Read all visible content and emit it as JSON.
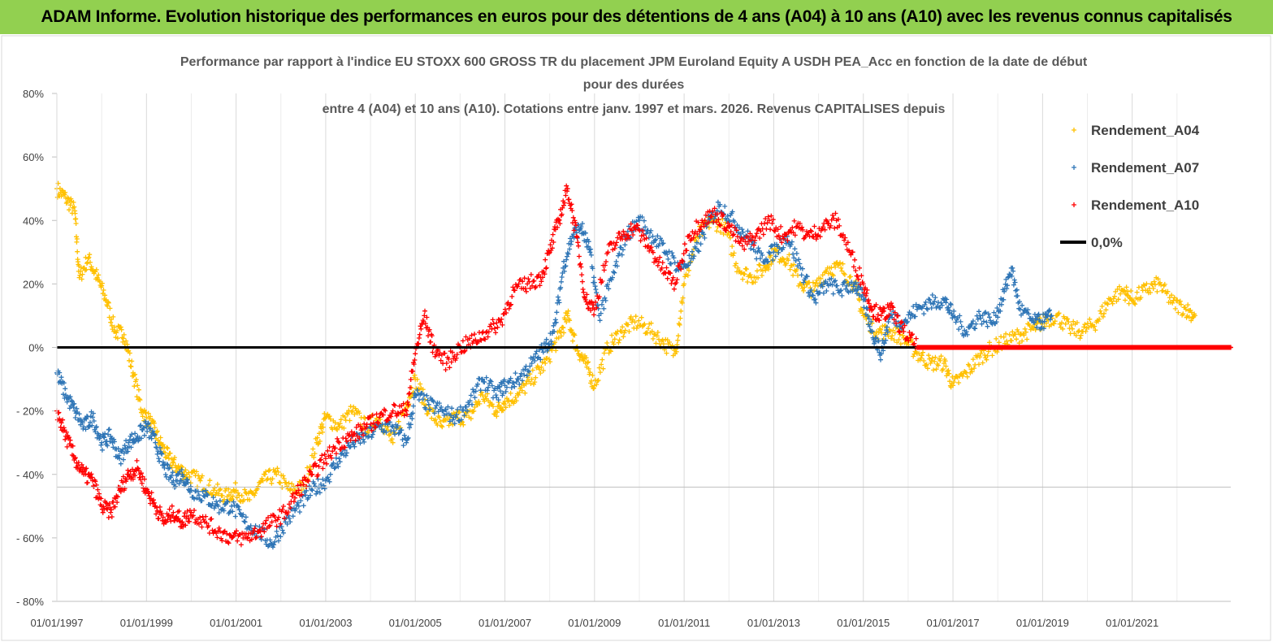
{
  "banner": {
    "title": "ADAM Informe. Evolution historique des performances en euros pour des détentions de 4 ans (A04) à 10 ans (A10) avec les revenus connus capitalisés"
  },
  "colors": {
    "banner": "#92d050",
    "a04": "#ffc000",
    "a07": "#2e75b6",
    "a10": "#ff0000",
    "zero_line": "#000000"
  },
  "chart_data": {
    "type": "scatter",
    "title": [
      "Performance par rapport à l'indice EU STOXX 600 GROSS TR  du placement JPM Euroland Equity A USDH PEA_Acc en fonction de la date de début",
      "pour des durées",
      "entre 4 (A04) et 10 ans (A10). Cotations entre janv. 1997 et mars. 2026. Revenus CAPITALISES depuis"
    ],
    "xlabel": "",
    "ylabel": "",
    "ylim": [
      -0.8,
      0.8
    ],
    "xlim": [
      1997.0,
      2023.2
    ],
    "y_ticks": [
      "80%",
      "60%",
      "40%",
      "20%",
      "0%",
      "- 20%",
      "- 40%",
      "- 60%",
      "- 80%"
    ],
    "x_ticks": [
      "01/01/1997",
      "01/01/1999",
      "01/01/2001",
      "01/01/2003",
      "01/01/2005",
      "01/01/2007",
      "01/01/2009",
      "01/01/2011",
      "01/01/2013",
      "01/01/2015",
      "01/01/2017",
      "01/01/2019",
      "01/01/2021"
    ],
    "grid": "vertical",
    "legend_position": "right",
    "series": [
      {
        "name": "Rendement_A04",
        "marker": "+",
        "x": [
          1997.0,
          1997.2,
          1997.4,
          1997.5,
          1997.7,
          1997.9,
          1998.1,
          1998.3,
          1998.5,
          1998.7,
          1998.9,
          1999.1,
          1999.3,
          1999.5,
          1999.7,
          1999.9,
          2000.2,
          2000.5,
          2000.8,
          2001.0,
          2001.3,
          2001.6,
          2001.9,
          2002.2,
          2002.5,
          2002.8,
          2003.0,
          2003.3,
          2003.6,
          2003.9,
          2004.2,
          2004.5,
          2004.8,
          2005.0,
          2005.3,
          2005.6,
          2005.9,
          2006.2,
          2006.5,
          2006.8,
          2007.0,
          2007.3,
          2007.6,
          2007.9,
          2008.2,
          2008.4,
          2008.6,
          2008.8,
          2009.0,
          2009.3,
          2009.6,
          2009.9,
          2010.2,
          2010.5,
          2010.8,
          2011.0,
          2011.3,
          2011.6,
          2011.9,
          2012.2,
          2012.5,
          2012.8,
          2013.0,
          2013.3,
          2013.6,
          2013.9,
          2014.2,
          2014.5,
          2014.8,
          2015.0,
          2015.3,
          2015.6,
          2015.9,
          2016.2,
          2016.5,
          2016.8,
          2017.0,
          2017.3,
          2017.6,
          2017.9,
          2018.2,
          2018.5,
          2018.8,
          2019.0,
          2019.3,
          2019.6,
          2019.9,
          2020.2,
          2020.5,
          2020.8,
          2021.0,
          2021.3,
          2021.6,
          2021.9,
          2022.2,
          2022.4
        ],
        "y": [
          0.5,
          0.47,
          0.43,
          0.22,
          0.28,
          0.22,
          0.15,
          0.05,
          0.04,
          -0.08,
          -0.2,
          -0.24,
          -0.3,
          -0.35,
          -0.38,
          -0.4,
          -0.42,
          -0.45,
          -0.47,
          -0.45,
          -0.48,
          -0.42,
          -0.4,
          -0.45,
          -0.44,
          -0.3,
          -0.22,
          -0.25,
          -0.2,
          -0.25,
          -0.22,
          -0.3,
          -0.18,
          -0.1,
          -0.2,
          -0.25,
          -0.22,
          -0.22,
          -0.15,
          -0.2,
          -0.17,
          -0.15,
          -0.1,
          -0.05,
          0.03,
          0.1,
          0.0,
          -0.05,
          -0.12,
          0.0,
          0.05,
          0.08,
          0.06,
          0.02,
          -0.02,
          0.2,
          0.35,
          0.4,
          0.38,
          0.25,
          0.22,
          0.25,
          0.3,
          0.28,
          0.2,
          0.18,
          0.25,
          0.25,
          0.2,
          0.1,
          0.05,
          0.05,
          0.03,
          -0.02,
          -0.05,
          -0.05,
          -0.12,
          -0.08,
          -0.03,
          0.0,
          0.02,
          0.04,
          0.06,
          0.08,
          0.1,
          0.06,
          0.05,
          0.08,
          0.15,
          0.18,
          0.15,
          0.18,
          0.2,
          0.14,
          0.12,
          0.1
        ]
      },
      {
        "name": "Rendement_A07",
        "marker": "+",
        "x": [
          1997.0,
          1997.2,
          1997.4,
          1997.6,
          1997.8,
          1998.0,
          1998.2,
          1998.4,
          1998.6,
          1998.8,
          1999.0,
          1999.2,
          1999.4,
          1999.6,
          1999.8,
          2000.0,
          2000.3,
          2000.6,
          2000.9,
          2001.2,
          2001.5,
          2001.8,
          2002.1,
          2002.4,
          2002.7,
          2003.0,
          2003.3,
          2003.6,
          2003.9,
          2004.2,
          2004.5,
          2004.8,
          2005.0,
          2005.3,
          2005.6,
          2005.9,
          2006.2,
          2006.5,
          2006.8,
          2007.0,
          2007.3,
          2007.6,
          2007.9,
          2008.1,
          2008.3,
          2008.5,
          2008.7,
          2008.9,
          2009.1,
          2009.4,
          2009.7,
          2010.0,
          2010.3,
          2010.6,
          2010.9,
          2011.2,
          2011.5,
          2011.8,
          2012.1,
          2012.4,
          2012.7,
          2013.0,
          2013.3,
          2013.6,
          2013.9,
          2014.2,
          2014.5,
          2014.8,
          2015.0,
          2015.2,
          2015.4,
          2015.6,
          2015.9,
          2016.2,
          2016.5,
          2016.8,
          2017.0,
          2017.3,
          2017.6,
          2017.9,
          2018.1,
          2018.3,
          2018.5,
          2018.8,
          2019.0,
          2019.2
        ],
        "y": [
          -0.08,
          -0.15,
          -0.2,
          -0.25,
          -0.22,
          -0.3,
          -0.28,
          -0.35,
          -0.3,
          -0.28,
          -0.25,
          -0.3,
          -0.38,
          -0.42,
          -0.4,
          -0.45,
          -0.47,
          -0.5,
          -0.5,
          -0.55,
          -0.58,
          -0.62,
          -0.55,
          -0.5,
          -0.45,
          -0.42,
          -0.35,
          -0.3,
          -0.28,
          -0.25,
          -0.25,
          -0.3,
          -0.15,
          -0.18,
          -0.2,
          -0.22,
          -0.18,
          -0.1,
          -0.15,
          -0.12,
          -0.1,
          -0.05,
          0.0,
          0.05,
          0.25,
          0.35,
          0.38,
          0.3,
          0.1,
          0.22,
          0.35,
          0.4,
          0.35,
          0.3,
          0.25,
          0.28,
          0.38,
          0.45,
          0.4,
          0.35,
          0.28,
          0.3,
          0.35,
          0.25,
          0.15,
          0.2,
          0.18,
          0.2,
          0.15,
          0.05,
          -0.02,
          0.1,
          0.08,
          0.12,
          0.14,
          0.15,
          0.1,
          0.05,
          0.1,
          0.08,
          0.15,
          0.25,
          0.12,
          0.08,
          0.08,
          0.1
        ]
      },
      {
        "name": "Rendement_A10",
        "marker": "+",
        "x": [
          1997.0,
          1997.2,
          1997.4,
          1997.6,
          1997.8,
          1998.0,
          1998.2,
          1998.4,
          1998.6,
          1998.8,
          1999.0,
          1999.2,
          1999.4,
          1999.6,
          1999.8,
          2000.0,
          2000.3,
          2000.6,
          2000.9,
          2001.2,
          2001.5,
          2001.8,
          2002.1,
          2002.4,
          2002.7,
          2003.0,
          2003.3,
          2003.6,
          2003.9,
          2004.2,
          2004.5,
          2004.8,
          2005.0,
          2005.2,
          2005.4,
          2005.7,
          2006.0,
          2006.3,
          2006.6,
          2006.9,
          2007.2,
          2007.5,
          2007.8,
          2008.0,
          2008.2,
          2008.4,
          2008.6,
          2008.8,
          2009.0,
          2009.3,
          2009.6,
          2009.9,
          2010.2,
          2010.5,
          2010.8,
          2011.1,
          2011.4,
          2011.7,
          2012.0,
          2012.3,
          2012.6,
          2012.9,
          2013.2,
          2013.5,
          2013.8,
          2014.1,
          2014.4,
          2014.7,
          2015.0,
          2015.2,
          2015.4,
          2015.6,
          2015.9,
          2016.2,
          2016.6,
          2017.0,
          2017.5,
          2018.0,
          2018.5,
          2019.0,
          2019.5,
          2020.0,
          2020.5,
          2021.0,
          2021.5,
          2022.0,
          2022.5,
          2023.0,
          2023.2
        ],
        "y": [
          -0.2,
          -0.28,
          -0.35,
          -0.4,
          -0.42,
          -0.5,
          -0.52,
          -0.45,
          -0.4,
          -0.38,
          -0.45,
          -0.5,
          -0.55,
          -0.52,
          -0.55,
          -0.52,
          -0.55,
          -0.58,
          -0.6,
          -0.6,
          -0.58,
          -0.55,
          -0.52,
          -0.45,
          -0.4,
          -0.35,
          -0.3,
          -0.28,
          -0.25,
          -0.22,
          -0.2,
          -0.2,
          -0.02,
          0.1,
          0.0,
          -0.05,
          0.0,
          0.02,
          0.05,
          0.08,
          0.18,
          0.2,
          0.22,
          0.3,
          0.4,
          0.5,
          0.35,
          0.15,
          0.12,
          0.3,
          0.35,
          0.38,
          0.32,
          0.25,
          0.2,
          0.35,
          0.4,
          0.42,
          0.38,
          0.32,
          0.35,
          0.4,
          0.35,
          0.38,
          0.35,
          0.38,
          0.4,
          0.3,
          0.2,
          0.12,
          0.1,
          0.12,
          0.05,
          0.0,
          0.0,
          0.0,
          0.0,
          0.0,
          0.0,
          0.0,
          0.0,
          0.0,
          0.0,
          0.0,
          0.0,
          0.0,
          0.0,
          0.0,
          0.0
        ]
      }
    ],
    "reference_line": {
      "name": "0,0%",
      "y": 0.0
    },
    "legend": [
      "Rendement_A04",
      "Rendement_A07",
      "Rendement_A10",
      "0,0%"
    ]
  }
}
